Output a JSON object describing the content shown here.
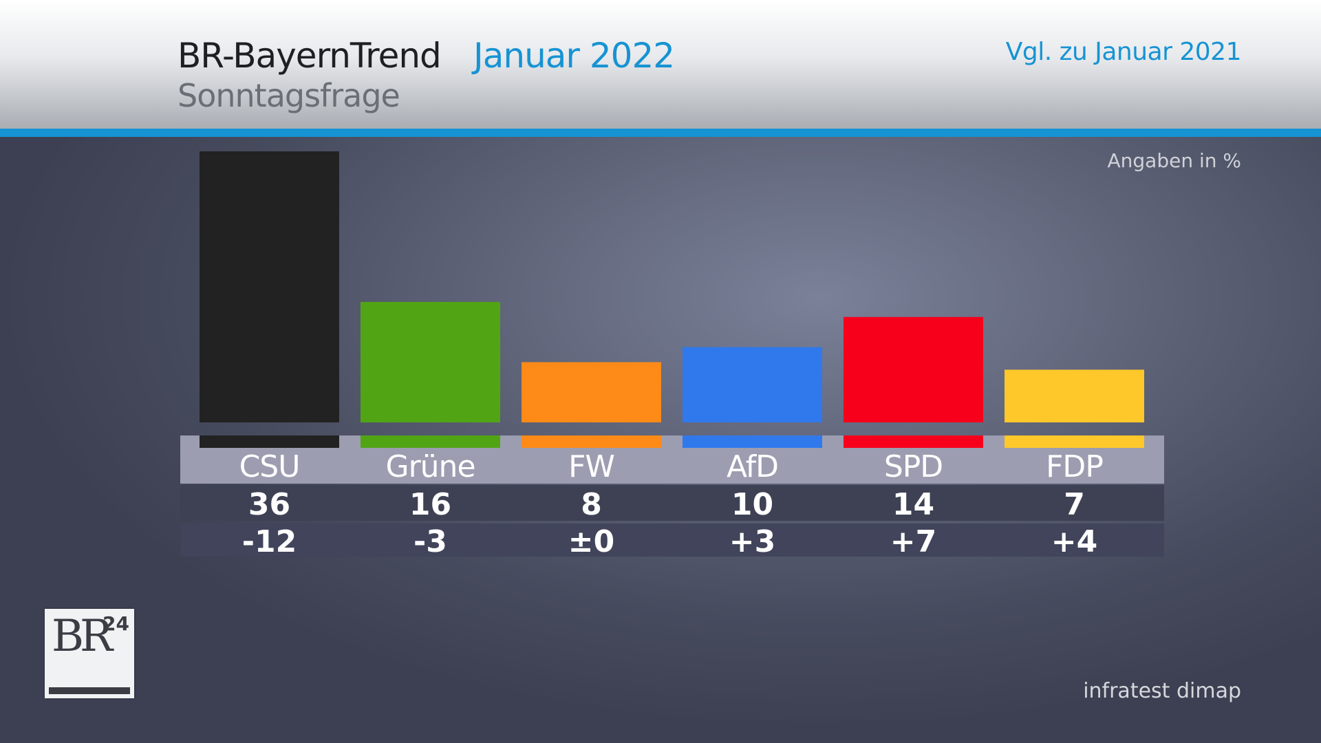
{
  "header": {
    "title": "BR-BayernTrend",
    "date": "Januar 2022",
    "subtitle": "Sonntagsfrage",
    "comparison": "Vgl. zu Januar 2021"
  },
  "unit_note": "Angaben in %",
  "source": "infratest dimap",
  "logo": {
    "text": "BR",
    "number": "24"
  },
  "colors": {
    "accent": "#1693d3",
    "label_row": "#9c9db0",
    "value_row": "#3e4153",
    "change_row": "#41445a"
  },
  "chart_data": {
    "type": "bar",
    "categories": [
      "CSU",
      "Grüne",
      "FW",
      "AfD",
      "SPD",
      "FDP"
    ],
    "values": [
      36,
      16,
      8,
      10,
      14,
      7
    ],
    "changes": [
      "-12",
      "-3",
      "±0",
      "+3",
      "+7",
      "+4"
    ],
    "colors": [
      "#222222",
      "#51a515",
      "#fe8a17",
      "#3079ec",
      "#f6001b",
      "#fec82a"
    ],
    "ylabel": "Angaben in %",
    "ylim": [
      0,
      36
    ],
    "grid": false,
    "legend": "none"
  }
}
